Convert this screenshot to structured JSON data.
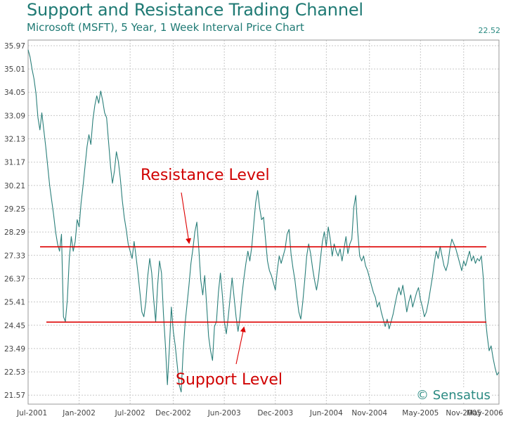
{
  "header": {
    "title": "Support and Resistance Trading Channel",
    "subtitle": "Microsoft (MSFT), 5 Year, 1 Week Interval Price Chart",
    "last_price": "22.52"
  },
  "watermark": "© Sensatus",
  "colors": {
    "title": "#1f7a74",
    "line": "#2a7f7a",
    "grid": "#c8c8c8",
    "level_line": "#dd0000",
    "annotation": "#d00000"
  },
  "chart_data": {
    "type": "line",
    "title": "Support and Resistance Trading Channel",
    "subtitle": "Microsoft (MSFT), 5 Year, 1 Week Interval Price Chart",
    "ylim": [
      21.2,
      36.2
    ],
    "y_ticks": [
      35.97,
      35.01,
      34.05,
      33.09,
      32.13,
      31.17,
      30.21,
      29.25,
      28.29,
      27.33,
      26.37,
      25.41,
      24.45,
      23.49,
      22.53,
      21.57
    ],
    "x_ticks": [
      "Jul-2001",
      "Jan-2002",
      "Jul-2002",
      "Dec-2002",
      "Jun-2003",
      "Dec-2003",
      "Jun-2004",
      "Nov-2004",
      "May-2005",
      "Nov-2005",
      "May-2006"
    ],
    "x_tick_index": [
      0,
      26,
      52,
      74,
      100,
      126,
      152,
      174,
      200,
      222,
      248
    ],
    "grid": true,
    "last_value": 22.52,
    "series": [
      {
        "values": [
          35.8,
          35.5,
          35.0,
          34.6,
          34.0,
          33.0,
          32.5,
          33.2,
          32.5,
          31.8,
          31.0,
          30.2,
          29.6,
          29.0,
          28.3,
          27.8,
          27.5,
          28.2,
          24.8,
          24.6,
          25.5,
          27.2,
          28.1,
          27.5,
          27.9,
          28.8,
          28.5,
          29.5,
          30.2,
          31.0,
          31.8,
          32.3,
          31.9,
          32.9,
          33.5,
          33.9,
          33.6,
          34.1,
          33.7,
          33.2,
          33.0,
          32.0,
          31.0,
          30.3,
          30.8,
          31.6,
          31.2,
          30.5,
          29.6,
          28.9,
          28.4,
          27.8,
          27.5,
          27.2,
          27.9,
          27.3,
          26.6,
          25.8,
          25.0,
          24.8,
          25.4,
          26.5,
          27.2,
          26.6,
          25.5,
          24.6,
          26.1,
          27.1,
          26.6,
          24.9,
          23.6,
          22.0,
          23.5,
          25.2,
          24.2,
          23.6,
          22.8,
          22.0,
          21.7,
          23.3,
          24.5,
          25.3,
          26.1,
          27.0,
          27.6,
          28.3,
          28.7,
          27.6,
          26.3,
          25.7,
          26.5,
          25.3,
          24.0,
          23.4,
          23.0,
          24.4,
          24.6,
          25.8,
          26.6,
          25.7,
          24.6,
          24.1,
          24.8,
          25.6,
          26.4,
          25.6,
          24.8,
          24.2,
          24.8,
          25.7,
          26.4,
          27.0,
          27.5,
          27.1,
          27.7,
          28.6,
          29.5,
          30.0,
          29.3,
          28.8,
          28.9,
          28.0,
          27.1,
          26.7,
          26.5,
          26.2,
          25.9,
          26.7,
          27.3,
          27.0,
          27.3,
          27.6,
          28.2,
          28.4,
          27.4,
          26.8,
          26.3,
          25.6,
          25.0,
          24.7,
          25.4,
          26.3,
          27.3,
          27.8,
          27.4,
          26.8,
          26.3,
          25.9,
          26.4,
          27.2,
          27.9,
          28.3,
          27.7,
          28.5,
          28.0,
          27.3,
          27.8,
          27.5,
          27.3,
          27.6,
          27.1,
          27.6,
          28.1,
          27.4,
          27.8,
          28.0,
          29.3,
          29.8,
          28.3,
          27.3,
          27.1,
          27.3,
          26.9,
          26.7,
          26.4,
          26.1,
          25.8,
          25.6,
          25.2,
          25.4,
          25.0,
          24.7,
          24.4,
          24.7,
          24.3,
          24.6,
          24.9,
          25.3,
          25.7,
          26.0,
          25.7,
          26.1,
          25.6,
          25.0,
          25.4,
          25.7,
          25.2,
          25.5,
          25.8,
          26.0,
          25.5,
          25.2,
          24.8,
          25.0,
          25.4,
          25.9,
          26.4,
          27.0,
          27.5,
          27.2,
          27.7,
          27.3,
          26.9,
          26.7,
          27.0,
          27.6,
          28.0,
          27.8,
          27.6,
          27.3,
          27.0,
          26.7,
          27.1,
          26.9,
          27.2,
          27.5,
          27.1,
          27.3,
          27.0,
          27.2,
          27.1,
          27.3,
          26.4,
          24.8,
          24.0,
          23.4,
          23.6,
          23.1,
          22.7,
          22.4,
          22.52
        ]
      }
    ],
    "levels": [
      {
        "name": "resistance",
        "value": 27.68
      },
      {
        "name": "support",
        "value": 24.58
      }
    ],
    "annotations": {
      "resistance_label": "Resistance Level",
      "support_label": "Support Level"
    }
  }
}
